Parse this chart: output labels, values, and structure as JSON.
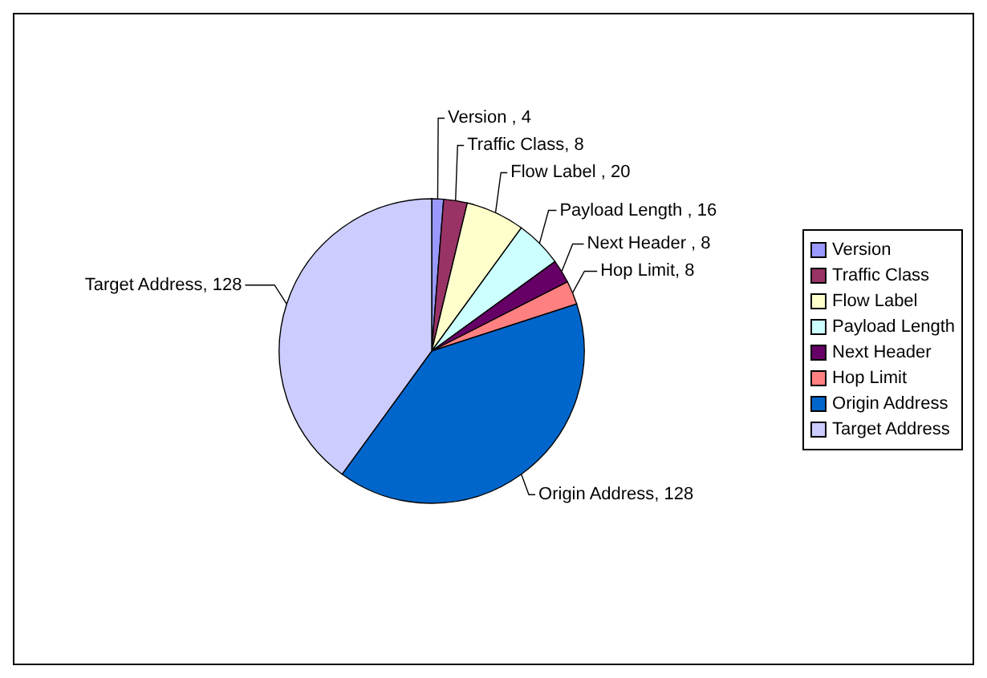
{
  "chart_data": {
    "type": "pie",
    "categories": [
      "Version",
      "Traffic Class",
      "Flow Label",
      "Payload Length",
      "Next Header",
      "Hop Limit",
      "Origin Address",
      "Target Address"
    ],
    "values": [
      4,
      8,
      20,
      16,
      8,
      8,
      128,
      128
    ],
    "colors": [
      "#9999ff",
      "#993366",
      "#ffffcc",
      "#ccffff",
      "#660066",
      "#ff8080",
      "#0066cc",
      "#ccccff"
    ],
    "value_labels": [
      "Version , 4",
      "Traffic Class, 8",
      "Flow Label , 20",
      "Payload Length , 16",
      "Next Header , 8",
      "Hop Limit, 8",
      "Origin Address, 128",
      "Target Address, 128"
    ],
    "legend": "right"
  }
}
